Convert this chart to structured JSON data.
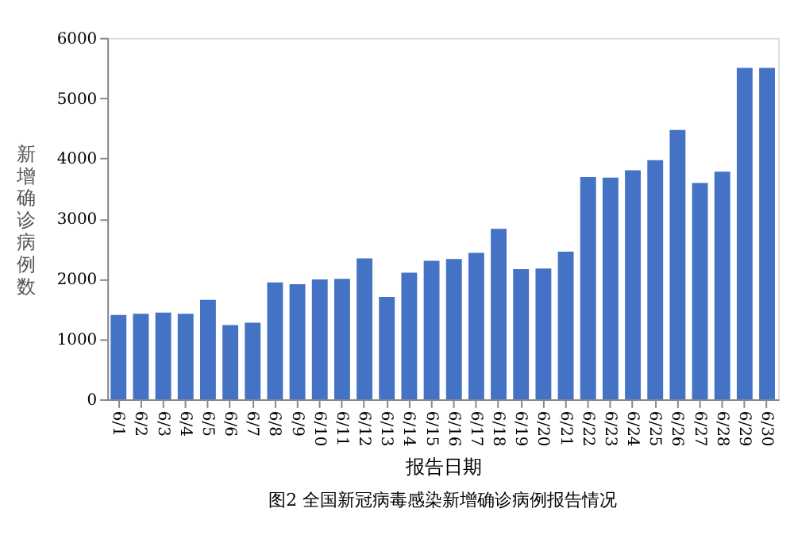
{
  "chart_data": {
    "type": "bar",
    "xlabel": "报告日期",
    "ylabel": "新增确诊病例数",
    "categories": [
      "6/1",
      "6/2",
      "6/3",
      "6/4",
      "6/5",
      "6/6",
      "6/7",
      "6/8",
      "6/9",
      "6/10",
      "6/11",
      "6/12",
      "6/13",
      "6/14",
      "6/15",
      "6/16",
      "6/17",
      "6/18",
      "6/19",
      "6/20",
      "6/21",
      "6/22",
      "6/23",
      "6/24",
      "6/25",
      "6/26",
      "6/27",
      "6/28",
      "6/29",
      "6/30"
    ],
    "values": [
      1400,
      1420,
      1440,
      1420,
      1650,
      1230,
      1270,
      1940,
      1910,
      1990,
      2000,
      2340,
      1700,
      2100,
      2300,
      2330,
      2430,
      2830,
      2160,
      2170,
      2450,
      3690,
      3680,
      3800,
      3970,
      4470,
      3590,
      3780,
      5500,
      5500
    ],
    "color": "#4472c4",
    "ylim": [
      0,
      6000
    ],
    "yticks": [
      0,
      1000,
      2000,
      3000,
      4000,
      5000,
      6000
    ],
    "grid": false,
    "annotations": [
      "图2  全国新冠病毒感染新增确诊病例报告情况"
    ]
  }
}
